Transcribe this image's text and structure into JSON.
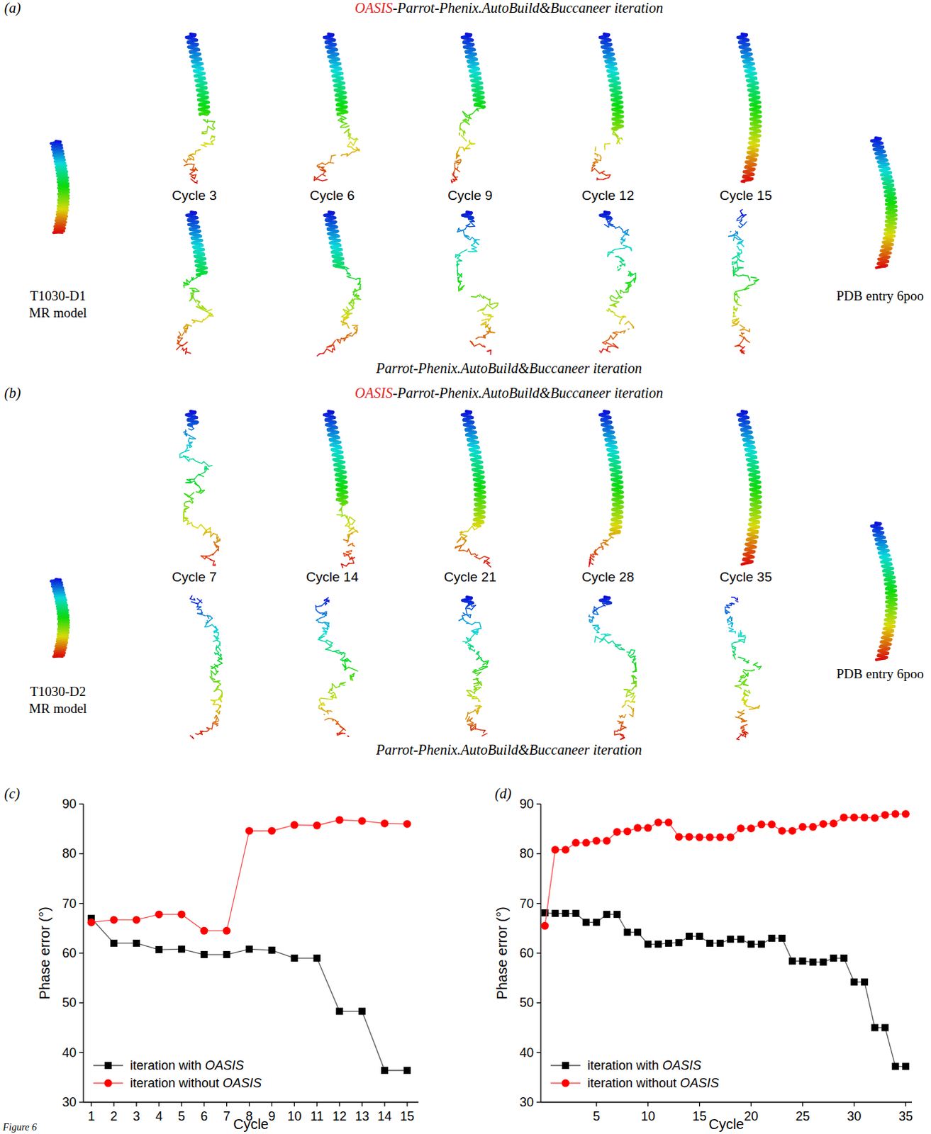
{
  "chart_data": [
    {
      "type": "line",
      "panel_label": "(c)",
      "x_label": "Cycle",
      "y_label": "Phase error (°)",
      "x": [
        1,
        2,
        3,
        4,
        5,
        6,
        7,
        8,
        9,
        10,
        11,
        12,
        13,
        14,
        15
      ],
      "xlim": [
        0.65,
        15.5
      ],
      "xticks": [
        1,
        2,
        3,
        4,
        5,
        6,
        7,
        8,
        9,
        10,
        11,
        12,
        13,
        14,
        15
      ],
      "ylim": [
        30,
        90
      ],
      "yticks": [
        30,
        40,
        50,
        60,
        70,
        80,
        90
      ],
      "legend": "lower left",
      "series": [
        {
          "name": "iteration with OASIS",
          "color": "#000000",
          "marker": "square",
          "values": [
            67,
            62,
            62,
            60.7,
            60.8,
            59.7,
            59.7,
            60.8,
            60.6,
            59,
            59,
            48.3,
            48.3,
            36.4,
            36.4
          ]
        },
        {
          "name": "iteration without OASIS",
          "color": "#ff0000",
          "marker": "circle",
          "values": [
            66.2,
            66.7,
            66.7,
            67.8,
            67.8,
            64.5,
            64.5,
            84.6,
            84.6,
            85.8,
            85.7,
            86.8,
            86.6,
            86.1,
            86.0
          ]
        }
      ]
    },
    {
      "type": "line",
      "panel_label": "(d)",
      "x_label": "Cycle",
      "y_label": "Phase error (°)",
      "x": [
        0,
        1,
        2,
        3,
        4,
        5,
        6,
        7,
        8,
        9,
        10,
        11,
        12,
        13,
        14,
        15,
        16,
        17,
        18,
        19,
        20,
        21,
        22,
        23,
        24,
        25,
        26,
        27,
        28,
        29,
        30,
        31,
        32,
        33,
        34,
        35
      ],
      "xlim": [
        -0.4,
        35.6
      ],
      "xticks": [
        5,
        10,
        15,
        20,
        25,
        30,
        35
      ],
      "ylim": [
        30,
        90
      ],
      "yticks": [
        30,
        40,
        50,
        60,
        70,
        80,
        90
      ],
      "legend": "lower left",
      "series": [
        {
          "name": "iteration with OASIS",
          "color": "#000000",
          "marker": "square",
          "values": [
            68.1,
            68,
            68,
            68,
            66.2,
            66.2,
            67.8,
            67.8,
            64.2,
            64.2,
            61.8,
            61.8,
            62,
            62.1,
            63.4,
            63.4,
            62,
            62,
            62.8,
            62.8,
            61.8,
            61.8,
            63,
            63,
            58.4,
            58.4,
            58.2,
            58.2,
            59,
            59,
            54.2,
            54.2,
            45,
            45,
            37.2,
            37.2
          ]
        },
        {
          "name": "iteration without OASIS",
          "color": "#ff0000",
          "marker": "circle",
          "values": [
            65.5,
            80.8,
            80.8,
            82.2,
            82.2,
            82.6,
            82.6,
            84.4,
            84.5,
            85.2,
            85.2,
            86.3,
            86.3,
            83.4,
            83.4,
            83.3,
            83.3,
            83.3,
            83.3,
            85.1,
            85.1,
            85.9,
            85.9,
            84.6,
            84.6,
            85.4,
            85.4,
            86,
            86.1,
            87.3,
            87.3,
            87.3,
            87.2,
            87.8,
            88,
            88
          ]
        }
      ]
    }
  ],
  "panels": {
    "a": {
      "letter": "(a)",
      "title_top": [
        "OASIS",
        "-Parrot-Phenix.AutoBuild&Buccaneer iteration"
      ],
      "title_bottom": "Parrot-Phenix.AutoBuild&Buccaneer iteration",
      "cycles": [
        "Cycle 3",
        "Cycle 6",
        "Cycle 9",
        "Cycle 12",
        "Cycle 15"
      ],
      "mr_model": [
        "T1030-D1",
        "MR model"
      ],
      "pdb": "PDB entry 6poo"
    },
    "b": {
      "letter": "(b)",
      "title_top": [
        "OASIS",
        "-Parrot-Phenix.AutoBuild&Buccaneer iteration"
      ],
      "title_bottom": "Parrot-Phenix.AutoBuild&Buccaneer iteration",
      "cycles": [
        "Cycle 7",
        "Cycle 14",
        "Cycle 21",
        "Cycle 28",
        "Cycle 35"
      ],
      "mr_model": [
        "T1030-D2",
        "MR model"
      ],
      "pdb": "PDB entry 6poo"
    }
  },
  "figure_label": "Figure 6"
}
